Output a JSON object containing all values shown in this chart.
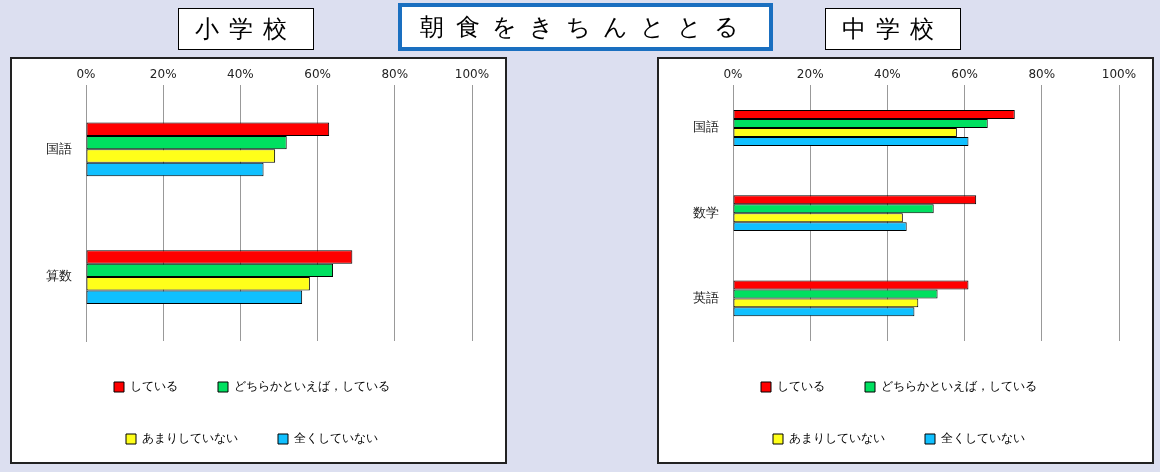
{
  "chart_data": [
    {
      "type": "bar",
      "orientation": "horizontal",
      "title": "小学校",
      "annotations": [
        "朝食をきちんととる"
      ],
      "categories": [
        "国語",
        "算数"
      ],
      "series": [
        {
          "name": "している",
          "color": "#ff0000",
          "values": [
            63,
            69
          ]
        },
        {
          "name": "どちらかといえば，している",
          "color": "#00e060",
          "values": [
            52,
            64
          ]
        },
        {
          "name": "あまりしていない",
          "color": "#ffff1a",
          "values": [
            49,
            58
          ]
        },
        {
          "name": "全くしていない",
          "color": "#10c0ff",
          "values": [
            46,
            56
          ]
        }
      ],
      "xlim": [
        0,
        100
      ],
      "xticks": [
        {
          "value": 0,
          "label": "0%"
        },
        {
          "value": 20,
          "label": "20%"
        },
        {
          "value": 40,
          "label": "40%"
        },
        {
          "value": 60,
          "label": "60%"
        },
        {
          "value": 80,
          "label": "80%"
        },
        {
          "value": 100,
          "label": "100%"
        }
      ],
      "grid": "x",
      "legend": "bottom"
    },
    {
      "type": "bar",
      "orientation": "horizontal",
      "title": "中学校",
      "categories": [
        "国語",
        "数学",
        "英語"
      ],
      "series": [
        {
          "name": "している",
          "color": "#ff0000",
          "values": [
            73,
            63,
            61
          ]
        },
        {
          "name": "どちらかといえば，している",
          "color": "#00e060",
          "values": [
            66,
            52,
            53
          ]
        },
        {
          "name": "あまりしていない",
          "color": "#ffff1a",
          "values": [
            58,
            44,
            48
          ]
        },
        {
          "name": "全くしていない",
          "color": "#10c0ff",
          "values": [
            61,
            45,
            47
          ]
        }
      ],
      "xlim": [
        0,
        100
      ],
      "xticks": [
        {
          "value": 0,
          "label": "0%"
        },
        {
          "value": 20,
          "label": "20%"
        },
        {
          "value": 40,
          "label": "40%"
        },
        {
          "value": 60,
          "label": "60%"
        },
        {
          "value": 80,
          "label": "80%"
        },
        {
          "value": 100,
          "label": "100%"
        }
      ],
      "grid": "x",
      "legend": "bottom"
    }
  ]
}
